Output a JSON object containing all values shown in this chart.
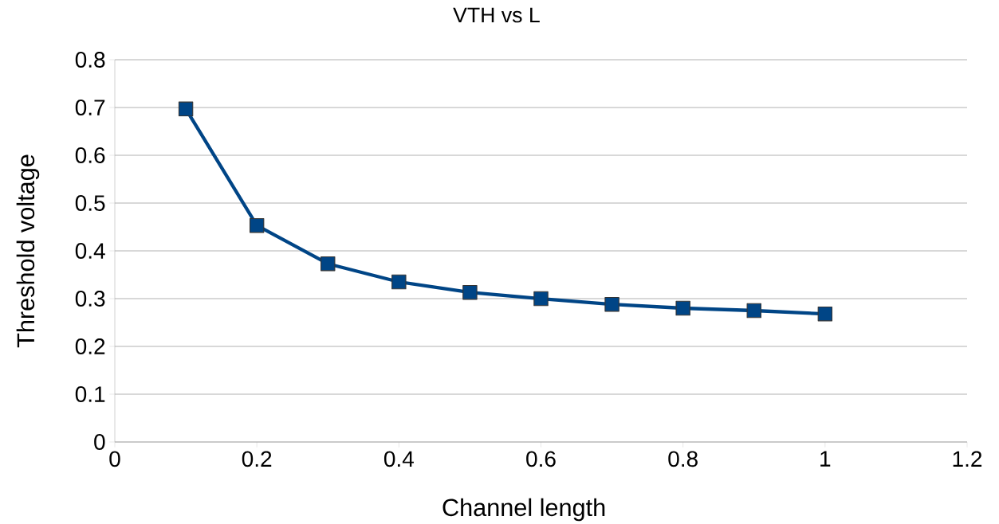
{
  "chart_data": {
    "type": "line",
    "title": "VTH vs L",
    "xlabel": "Channel length",
    "ylabel": "Threshold voltage",
    "x": [
      0.1,
      0.2,
      0.3,
      0.4,
      0.5,
      0.6,
      0.7,
      0.8,
      0.9,
      1.0
    ],
    "series": [
      {
        "color": "#004586",
        "values": [
          0.697,
          0.453,
          0.373,
          0.335,
          0.313,
          0.3,
          0.288,
          0.28,
          0.275,
          0.268
        ]
      }
    ],
    "xlim": [
      0,
      1.2
    ],
    "ylim": [
      0,
      0.8
    ],
    "xticks": [
      0,
      0.2,
      0.4,
      0.6,
      0.8,
      1,
      1.2
    ],
    "yticks": [
      0,
      0.1,
      0.2,
      0.3,
      0.4,
      0.5,
      0.6,
      0.7,
      0.8
    ],
    "grid": "y",
    "marker": "square",
    "line_style": "solid"
  }
}
